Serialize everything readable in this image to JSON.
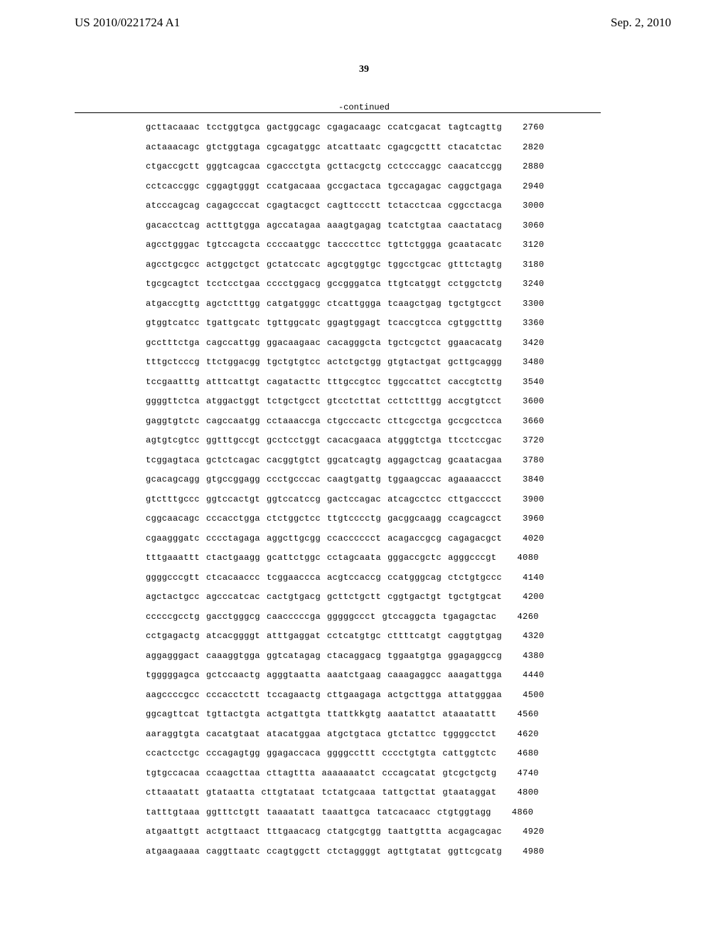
{
  "header": {
    "patent_number": "US 2010/0221724 A1",
    "date": "Sep. 2, 2010"
  },
  "page_number": "39",
  "continued_label": "-continued",
  "sequence": {
    "font_family": "Courier New",
    "font_size": 12,
    "text_color": "#000000",
    "background_color": "#ffffff",
    "rows": [
      {
        "blocks": [
          "gcttacaaac",
          "tcctggtgca",
          "gactggcagc",
          "cgagacaagc",
          "ccatcgacat",
          "tagtcagttg"
        ],
        "pos": "2760"
      },
      {
        "blocks": [
          "actaaacagc",
          "gtctggtaga",
          "cgcagatggc",
          "atcattaatc",
          "cgagcgcttt",
          "ctacatctac"
        ],
        "pos": "2820"
      },
      {
        "blocks": [
          "ctgaccgctt",
          "gggtcagcaa",
          "cgaccctgta",
          "gcttacgctg",
          "cctcccaggc",
          "caacatccgg"
        ],
        "pos": "2880"
      },
      {
        "blocks": [
          "cctcaccggc",
          "cggagtgggt",
          "ccatgacaaa",
          "gccgactaca",
          "tgccagagac",
          "caggctgaga"
        ],
        "pos": "2940"
      },
      {
        "blocks": [
          "atcccagcag",
          "cagagcccat",
          "cgagtacgct",
          "cagttccctt",
          "tctacctcaa",
          "cggcctacga"
        ],
        "pos": "3000"
      },
      {
        "blocks": [
          "gacacctcag",
          "actttgtgga",
          "agccatagaa",
          "aaagtgagag",
          "tcatctgtaa",
          "caactatacg"
        ],
        "pos": "3060"
      },
      {
        "blocks": [
          "agcctgggac",
          "tgtccagcta",
          "ccccaatggc",
          "taccccttcc",
          "tgttctggga",
          "gcaatacatc"
        ],
        "pos": "3120"
      },
      {
        "blocks": [
          "agcctgcgcc",
          "actggctgct",
          "gctatccatc",
          "agcgtggtgc",
          "tggcctgcac",
          "gtttctagtg"
        ],
        "pos": "3180"
      },
      {
        "blocks": [
          "tgcgcagtct",
          "tcctcctgaa",
          "cccctggacg",
          "gccgggatca",
          "ttgtcatggt",
          "cctggctctg"
        ],
        "pos": "3240"
      },
      {
        "blocks": [
          "atgaccgttg",
          "agctctttgg",
          "catgatgggc",
          "ctcattggga",
          "tcaagctgag",
          "tgctgtgcct"
        ],
        "pos": "3300"
      },
      {
        "blocks": [
          "gtggtcatcc",
          "tgattgcatc",
          "tgttggcatc",
          "ggagtggagt",
          "tcaccgtcca",
          "cgtggctttg"
        ],
        "pos": "3360"
      },
      {
        "blocks": [
          "gcctttctga",
          "cagccattgg",
          "ggacaagaac",
          "cacagggcta",
          "tgctcgctct",
          "ggaacacatg"
        ],
        "pos": "3420"
      },
      {
        "blocks": [
          "tttgctcccg",
          "ttctggacgg",
          "tgctgtgtcc",
          "actctgctgg",
          "gtgtactgat",
          "gcttgcaggg"
        ],
        "pos": "3480"
      },
      {
        "blocks": [
          "tccgaatttg",
          "atttcattgt",
          "cagatacttc",
          "tttgccgtcc",
          "tggccattct",
          "caccgtcttg"
        ],
        "pos": "3540"
      },
      {
        "blocks": [
          "ggggttctca",
          "atggactggt",
          "tctgctgcct",
          "gtcctcttat",
          "ccttctttgg",
          "accgtgtcct"
        ],
        "pos": "3600"
      },
      {
        "blocks": [
          "gaggtgtctc",
          "cagccaatgg",
          "cctaaaccga",
          "ctgcccactc",
          "cttcgcctga",
          "gccgcctcca"
        ],
        "pos": "3660"
      },
      {
        "blocks": [
          "agtgtcgtcc",
          "ggtttgccgt",
          "gcctcctggt",
          "cacacgaaca",
          "atgggtctga",
          "ttcctccgac"
        ],
        "pos": "3720"
      },
      {
        "blocks": [
          "tcggagtaca",
          "gctctcagac",
          "cacggtgtct",
          "ggcatcagtg",
          "aggagctcag",
          "gcaatacgaa"
        ],
        "pos": "3780"
      },
      {
        "blocks": [
          "gcacagcagg",
          "gtgccggagg",
          "ccctgcccac",
          "caagtgattg",
          "tggaagccac",
          "agaaaaccct"
        ],
        "pos": "3840"
      },
      {
        "blocks": [
          "gtctttgccc",
          "ggtccactgt",
          "ggtccatccg",
          "gactccagac",
          "atcagcctcc",
          "cttgacccct"
        ],
        "pos": "3900"
      },
      {
        "blocks": [
          "cggcaacagc",
          "cccacctgga",
          "ctctggctcc",
          "ttgtcccctg",
          "gacggcaagg",
          "ccagcagcct"
        ],
        "pos": "3960"
      },
      {
        "blocks": [
          "cgaagggatc",
          "cccctagaga",
          "aggcttgcgg",
          "ccacccccct",
          "acagaccgcg",
          "cagagacgct"
        ],
        "pos": "4020"
      },
      {
        "blocks": [
          "tttgaaattt",
          "ctactgaagg",
          "gcattctggc",
          "cctagcaata",
          "gggaccgctc",
          "agggcccgt"
        ],
        "pos": "4080"
      },
      {
        "blocks": [
          "ggggcccgtt",
          "ctcacaaccc",
          "tcggaaccca",
          "acgtccaccg",
          "ccatgggcag",
          "ctctgtgccc"
        ],
        "pos": "4140"
      },
      {
        "blocks": [
          "agctactgcc",
          "agcccatcac",
          "cactgtgacg",
          "gcttctgctt",
          "cggtgactgt",
          "tgctgtgcat"
        ],
        "pos": "4200"
      },
      {
        "blocks": [
          "cccccgcctg",
          "gacctgggcg",
          "caacccccga",
          "gggggccct",
          "gtccaggcta",
          "tgagagctac"
        ],
        "pos": "4260"
      },
      {
        "blocks": [
          "cctgagactg",
          "atcacggggt",
          "atttgaggat",
          "cctcatgtgc",
          "cttttcatgt",
          "caggtgtgag"
        ],
        "pos": "4320"
      },
      {
        "blocks": [
          "aggagggact",
          "caaaggtgga",
          "ggtcatagag",
          "ctacaggacg",
          "tggaatgtga",
          "ggagaggccg"
        ],
        "pos": "4380"
      },
      {
        "blocks": [
          "tgggggagca",
          "gctccaactg",
          "agggtaatta",
          "aaatctgaag",
          "caaagaggcc",
          "aaagattgga"
        ],
        "pos": "4440"
      },
      {
        "blocks": [
          "aagccccgcc",
          "cccacctctt",
          "tccagaactg",
          "cttgaagaga",
          "actgcttgga",
          "attatgggaa"
        ],
        "pos": "4500"
      },
      {
        "blocks": [
          "ggcagttcat",
          "tgttactgta",
          "actgattgta",
          "ttattkkgtg",
          "aaatattct",
          "ataaatattt"
        ],
        "pos": "4560"
      },
      {
        "blocks": [
          "aaraggtgta",
          "cacatgtaat",
          "atacatggaa",
          "atgctgtaca",
          "gtctattcc",
          "tggggcctct"
        ],
        "pos": "4620"
      },
      {
        "blocks": [
          "ccactcctgc",
          "cccagagtgg",
          "ggagaccaca",
          "ggggccttt",
          "cccctgtgta",
          "cattggtctc"
        ],
        "pos": "4680"
      },
      {
        "blocks": [
          "tgtgccacaa",
          "ccaagcttaa",
          "cttagttta",
          "aaaaaaatct",
          "cccagcatat",
          "gtcgctgctg"
        ],
        "pos": "4740"
      },
      {
        "blocks": [
          "cttaaatatt",
          "gtataatta",
          "cttgtataat",
          "tctatgcaaa",
          "tattgcttat",
          "gtaataggat"
        ],
        "pos": "4800"
      },
      {
        "blocks": [
          "tatttgtaaa",
          "ggtttctgtt",
          "taaaatatt",
          "taaattgca",
          "tatcacaacc",
          "ctgtggtagg"
        ],
        "pos": "4860"
      },
      {
        "blocks": [
          "atgaattgtt",
          "actgttaact",
          "tttgaacacg",
          "ctatgcgtgg",
          "taattgttta",
          "acgagcagac"
        ],
        "pos": "4920"
      },
      {
        "blocks": [
          "atgaagaaaa",
          "caggttaatc",
          "ccagtggctt",
          "ctctaggggt",
          "agttgtatat",
          "ggttcgcatg"
        ],
        "pos": "4980"
      }
    ]
  }
}
